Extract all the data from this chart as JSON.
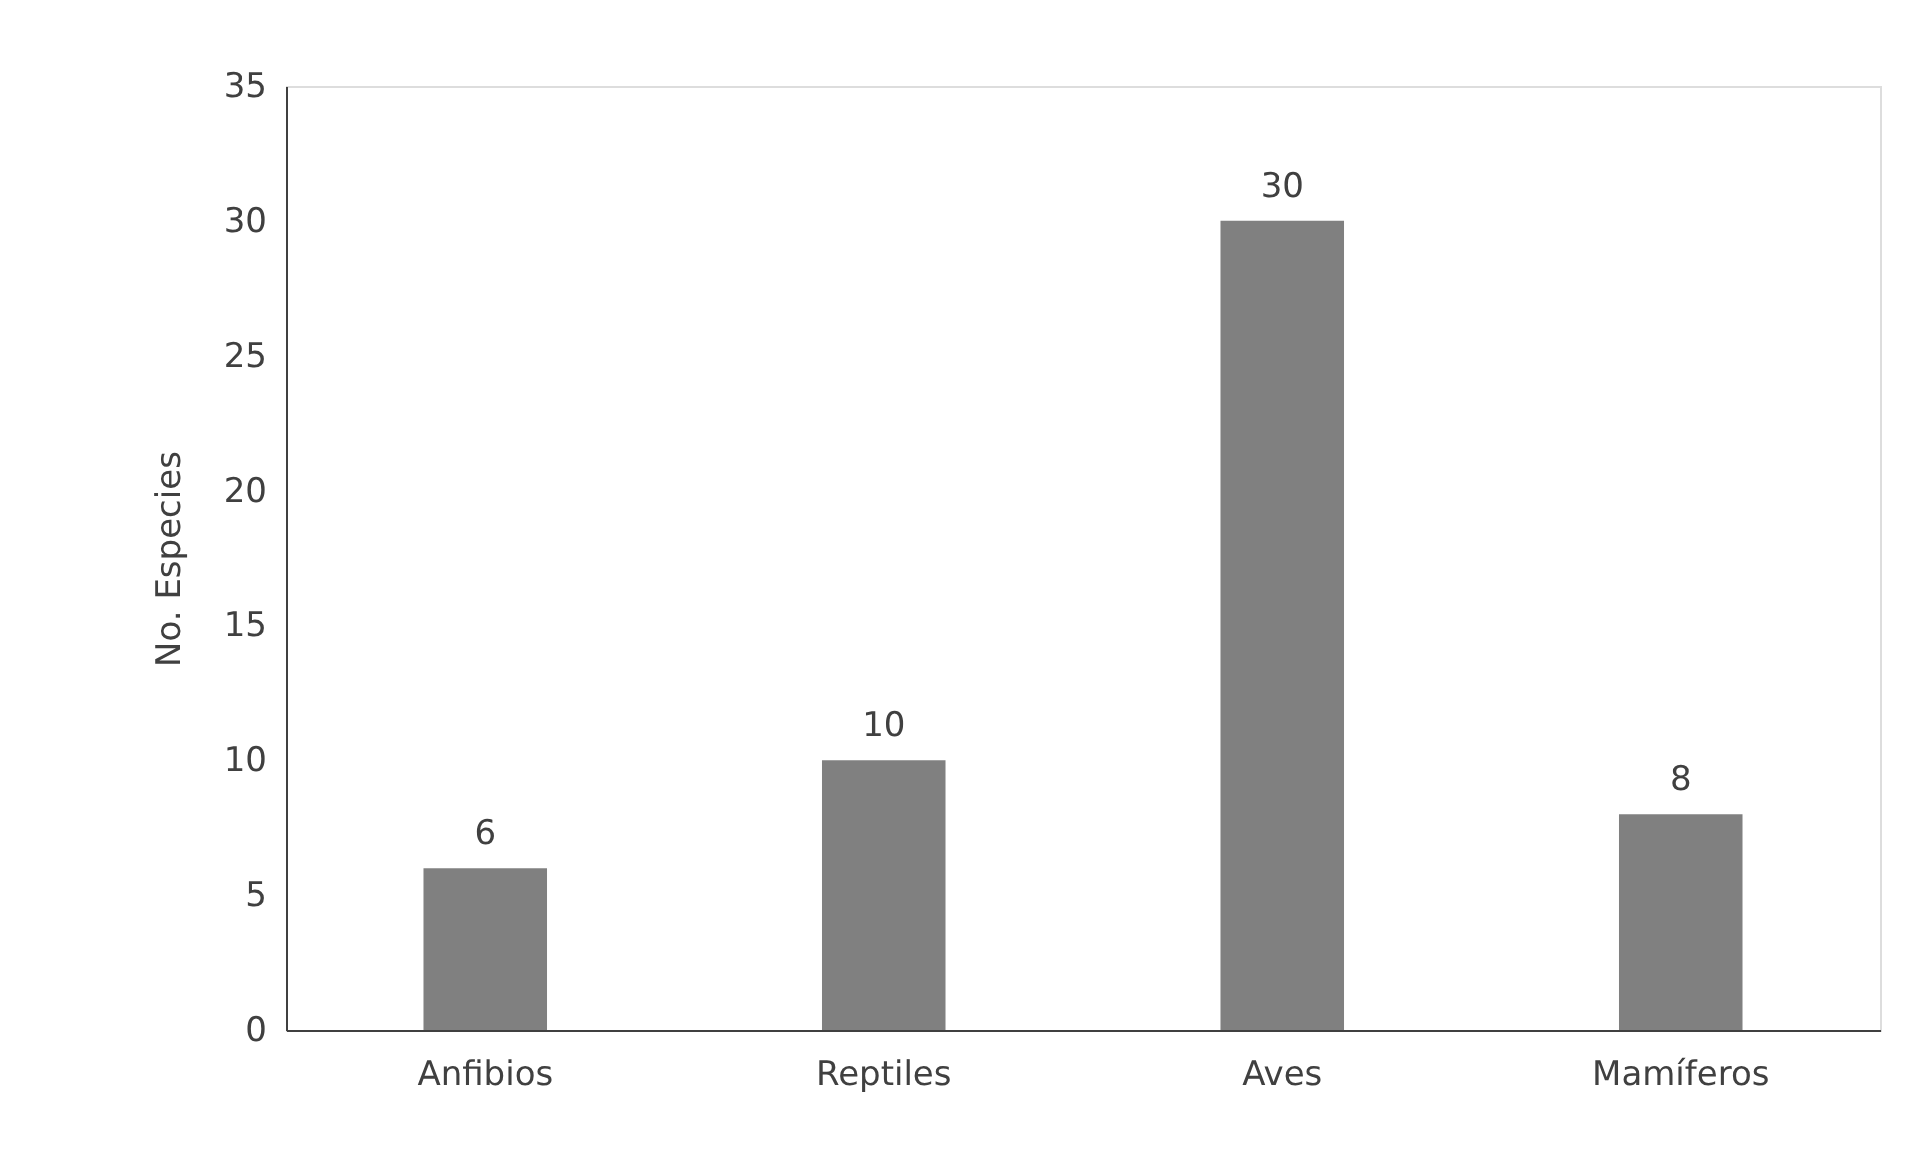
{
  "chart_data": {
    "type": "bar",
    "ylabel": "No. Especies",
    "categories": [
      "Anfibios",
      "Reptiles",
      "Aves",
      "Mamíferos"
    ],
    "values": [
      6,
      10,
      30,
      8
    ],
    "color": "#808080",
    "ylim": [
      0,
      35
    ],
    "yticks": [
      0,
      5,
      10,
      15,
      20,
      25,
      30,
      35
    ],
    "data_labels": true,
    "grid": false
  }
}
